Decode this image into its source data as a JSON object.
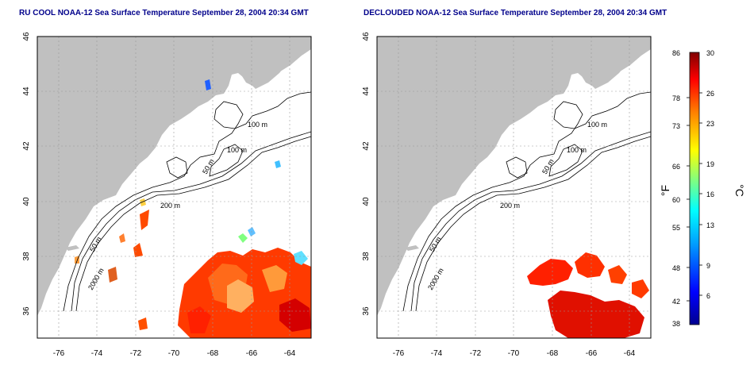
{
  "maps": [
    {
      "title": "RU COOL NOAA-12 Sea Surface Temperature September 28, 2004 20:34 GMT",
      "contour_labels": [
        "100 m",
        "100 m",
        "50 m",
        "200 m",
        "50 m",
        "2000 m"
      ]
    },
    {
      "title": "DECLOUDED NOAA-12 Sea Surface Temperature September 28, 2004 20:34 GMT",
      "contour_labels": [
        "100 m",
        "100 m",
        "50 m",
        "200 m",
        "50 m",
        "2000 m"
      ]
    }
  ],
  "axes": {
    "lon_ticks": [
      "-76",
      "-74",
      "-72",
      "-70",
      "-68",
      "-66",
      "-64"
    ],
    "lat_ticks": [
      "36",
      "38",
      "40",
      "42",
      "44",
      "46"
    ]
  },
  "colorbar": {
    "f_label": "°F",
    "c_label": "°C",
    "f_ticks": [
      "86",
      "78",
      "73",
      "66",
      "60",
      "55",
      "48",
      "42",
      "38"
    ],
    "c_ticks": [
      "30",
      "26",
      "23",
      "19",
      "16",
      "13",
      "9",
      "6"
    ],
    "c_range": [
      3,
      30
    ],
    "colors": [
      "#00008f",
      "#0000ff",
      "#0080ff",
      "#00ffff",
      "#80ff80",
      "#ffff00",
      "#ff8000",
      "#ff0000",
      "#800000"
    ]
  }
}
